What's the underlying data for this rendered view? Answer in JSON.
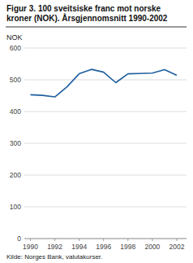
{
  "chart_data": {
    "type": "line",
    "title": "Figur 3. 100 sveitsiske franc mot norske kroner (NOK). Årsgjennomsnitt 1990-2002",
    "y_label": "NOK",
    "source": "Kilde: Norges Bank, valutakurser.",
    "x": [
      1990,
      1991,
      1992,
      1993,
      1994,
      1995,
      1996,
      1997,
      1998,
      1999,
      2000,
      2001,
      2002
    ],
    "values": [
      453,
      451,
      446,
      478,
      519,
      533,
      524,
      491,
      519,
      520,
      521,
      532,
      514
    ],
    "color": "#1f5f9e",
    "xlim": [
      1989.5,
      2002.8
    ],
    "xticks": [
      1990,
      1992,
      1994,
      1996,
      1998,
      2000,
      2002
    ],
    "ylim": [
      0,
      600
    ],
    "yticks": [
      0,
      100,
      200,
      300,
      400,
      500,
      600
    ],
    "grid": true
  }
}
